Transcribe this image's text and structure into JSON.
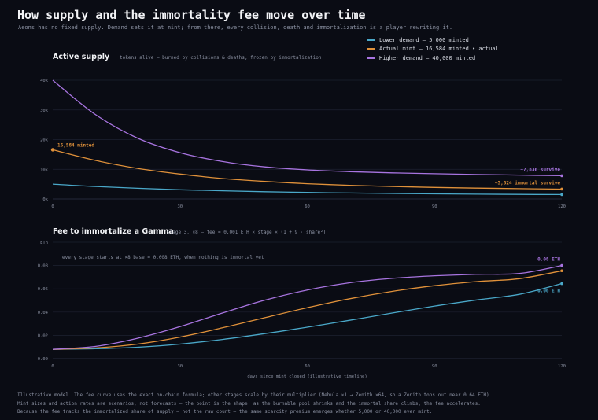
{
  "header": {
    "title": "How supply and the immortality fee move over time",
    "subtitle": "Aeons has no fixed supply. Demand sets it at mint; from there, every collision, death and immortalization is a player rewriting it."
  },
  "legend": [
    {
      "label": "Lower demand — 5,000 minted",
      "color": "#4aa8c9"
    },
    {
      "label": "Actual mint — 16,584 minted • actual",
      "color": "#e0913a"
    },
    {
      "label": "Higher demand — 40,000 minted",
      "color": "#a874e0"
    }
  ],
  "panels": {
    "supply": {
      "title": "Active supply",
      "subtitle": "tokens alive — burned by collisions & deaths, frozen by immortalization"
    },
    "fee": {
      "title": "Fee to immortalize a Gamma",
      "subtitle": "stage 3, ×8 — fee = 0.001 ETH × stage × (1 + 9 · share²)"
    }
  },
  "footer": {
    "line1": "Illustrative model. The fee curve uses the exact on-chain formula; other stages scale by their multiplier (Nebula ×1 → Zenith ×64, so a Zenith tops out near 0.64 ETH).",
    "line2": "Mint sizes and action rates are scenarios, not forecasts — the point is the shape: as the burnable pool shrinks and the immortal share climbs, the fee accelerates.",
    "line3": "Because the fee tracks the immortalized share of supply — not the raw count — the same scarcity premium emerges whether 5,000 or 40,000 ever mint."
  },
  "chart_data": [
    {
      "type": "line",
      "title": "Active supply",
      "xlim": [
        0,
        120
      ],
      "ylim": [
        0,
        40000
      ],
      "x_ticks": [
        0,
        30,
        60,
        90,
        120
      ],
      "x_tick_labels": [
        "0",
        "30",
        "60",
        "90",
        "120"
      ],
      "y_ticks": [
        0,
        10000,
        20000,
        30000,
        40000
      ],
      "y_tick_labels": [
        "0k",
        "10k",
        "20k",
        "30k",
        "40k"
      ],
      "grid": true,
      "x": [
        0,
        10,
        20,
        30,
        40,
        50,
        60,
        70,
        80,
        90,
        100,
        110,
        120
      ],
      "series": [
        {
          "name": "Lower demand — 5,000 minted",
          "color": "#4aa8c9",
          "values": [
            5000,
            4200,
            3600,
            3100,
            2750,
            2450,
            2200,
            2000,
            1850,
            1720,
            1620,
            1540,
            1480
          ]
        },
        {
          "name": "Actual mint — 16,584 minted • actual",
          "color": "#e0913a",
          "values": [
            16584,
            13000,
            10300,
            8400,
            6900,
            5900,
            5150,
            4600,
            4200,
            3900,
            3650,
            3480,
            3324
          ]
        },
        {
          "name": "Higher demand — 40,000 minted",
          "color": "#a874e0",
          "values": [
            40000,
            28500,
            20500,
            15600,
            12600,
            10800,
            9800,
            9200,
            8800,
            8500,
            8250,
            8050,
            7836
          ]
        }
      ],
      "annotations": [
        {
          "text": "16,584 minted",
          "series": 1,
          "at": "start"
        },
        {
          "text": "~7,836 survive",
          "series": 2,
          "at": "end"
        },
        {
          "text": "~3,324 immortal survive",
          "series": 1,
          "at": "end"
        }
      ]
    },
    {
      "type": "line",
      "title": "Fee to immortalize a Gamma",
      "xlabel": "days since mint closed (illustrative timeline)",
      "xlim": [
        0,
        120
      ],
      "ylim": [
        0,
        0.1
      ],
      "x_ticks": [
        0,
        30,
        60,
        90,
        120
      ],
      "x_tick_labels": [
        "0",
        "30",
        "60",
        "90",
        "120"
      ],
      "y_ticks": [
        0,
        0.02,
        0.04,
        0.06,
        0.08,
        0.1
      ],
      "y_tick_labels": [
        "0.00",
        "0.02",
        "0.04",
        "0.06",
        "0.08",
        "ETh"
      ],
      "grid": true,
      "x": [
        0,
        10,
        20,
        30,
        40,
        50,
        60,
        70,
        80,
        90,
        100,
        110,
        120
      ],
      "series": [
        {
          "name": "Lower demand — 5,000 minted",
          "color": "#4aa8c9",
          "values": [
            0.008,
            0.0085,
            0.0098,
            0.0125,
            0.0165,
            0.0215,
            0.027,
            0.033,
            0.0392,
            0.0452,
            0.0505,
            0.0553,
            0.0645
          ]
        },
        {
          "name": "Actual mint — 16,584 minted • actual",
          "color": "#e0913a",
          "values": [
            0.008,
            0.0092,
            0.0125,
            0.0185,
            0.0265,
            0.0352,
            0.0438,
            0.0515,
            0.0578,
            0.0627,
            0.0662,
            0.0687,
            0.0755
          ]
        },
        {
          "name": "Higher demand — 40,000 minted",
          "color": "#a874e0",
          "values": [
            0.008,
            0.0105,
            0.0175,
            0.0275,
            0.0392,
            0.0503,
            0.059,
            0.0652,
            0.069,
            0.0712,
            0.0725,
            0.0732,
            0.08
          ]
        }
      ],
      "annotations": [
        {
          "text": "every stage starts at ×8 base = 0.008 ETH, when nothing is immortal yet",
          "at": "top-left"
        },
        {
          "text": "0.08 ETH",
          "series": 2,
          "at": "end"
        },
        {
          "text": "0.06 ETH",
          "series": 0,
          "at": "end"
        }
      ]
    }
  ]
}
